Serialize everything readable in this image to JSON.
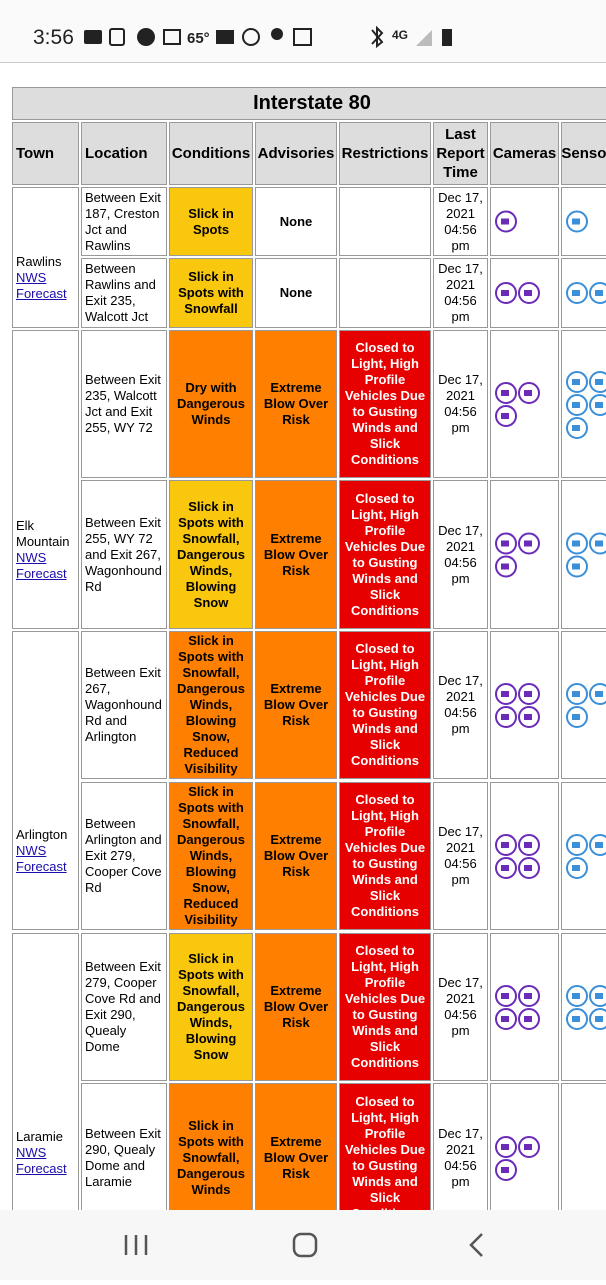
{
  "status_bar": {
    "time": "3:56",
    "temperature": "65°",
    "network": "4G"
  },
  "table": {
    "title": "Interstate 80",
    "headers": [
      "Town",
      "Location",
      "Conditions",
      "Advisories",
      "Restrictions",
      "Last Report Time",
      "Cameras",
      "Sensors"
    ],
    "towns": [
      {
        "name": "Rawlins",
        "link": "NWS Forecast",
        "rows": [
          {
            "location": "Between Exit 187, Creston Jct and Rawlins",
            "conditions": "Slick in Spots",
            "conditions_color": "#f9c80e",
            "advisories": "None",
            "advisories_color": "#ffffff",
            "restrictions": "",
            "restrictions_color": "#ffffff",
            "time": "Dec 17, 2021 04:56 pm"
          },
          {
            "location": "Between Rawlins and Exit 235, Walcott Jct",
            "conditions": "Slick in Spots with Snowfall",
            "conditions_color": "#f9c80e",
            "advisories": "None",
            "advisories_color": "#ffffff",
            "restrictions": "",
            "restrictions_color": "#ffffff",
            "time": "Dec 17, 2021 04:56 pm"
          }
        ]
      },
      {
        "name": "Elk Mountain",
        "link": "NWS Forecast",
        "rows": [
          {
            "location": "Between Exit 235, Walcott Jct and Exit 255, WY 72",
            "conditions": "Dry with Dangerous Winds",
            "conditions_color": "#ff8000",
            "advisories": "Extreme Blow Over Risk",
            "advisories_color": "#ff8000",
            "restrictions": "Closed to Light, High Profile Vehicles Due to Gusting Winds and Slick Conditions",
            "restrictions_color": "#e60000",
            "time": "Dec 17, 2021 04:56 pm"
          },
          {
            "location": "Between Exit 255, WY 72 and Exit 267, Wagonhound Rd",
            "conditions": "Slick in Spots with Snowfall, Dangerous Winds, Blowing Snow",
            "conditions_color": "#f9c80e",
            "advisories": "Extreme Blow Over Risk",
            "advisories_color": "#ff8000",
            "restrictions": "Closed to Light, High Profile Vehicles Due to Gusting Winds and Slick Conditions",
            "restrictions_color": "#e60000",
            "time": "Dec 17, 2021 04:56 pm"
          }
        ]
      },
      {
        "name": "Arlington",
        "link": "NWS Forecast",
        "rows": [
          {
            "location": "Between Exit 267, Wagonhound Rd and Arlington",
            "conditions": "Slick in Spots with Snowfall, Dangerous Winds, Blowing Snow, Reduced Visibility",
            "conditions_color": "#ff8000",
            "advisories": "Extreme Blow Over Risk",
            "advisories_color": "#ff8000",
            "restrictions": "Closed to Light, High Profile Vehicles Due to Gusting Winds and Slick Conditions",
            "restrictions_color": "#e60000",
            "time": "Dec 17, 2021 04:56 pm"
          },
          {
            "location": "Between Arlington and Exit 279, Cooper Cove Rd",
            "conditions": "Slick in Spots with Snowfall, Dangerous Winds, Blowing Snow, Reduced Visibility",
            "conditions_color": "#ff8000",
            "advisories": "Extreme Blow Over Risk",
            "advisories_color": "#ff8000",
            "restrictions": "Closed to Light, High Profile Vehicles Due to Gusting Winds and Slick Conditions",
            "restrictions_color": "#e60000",
            "time": "Dec 17, 2021 04:56 pm"
          }
        ]
      },
      {
        "name": "Laramie",
        "link": "NWS Forecast",
        "rows": [
          {
            "location": "Between Exit 279, Cooper Cove Rd and Exit 290, Quealy Dome",
            "conditions": "Slick in Spots with Snowfall, Dangerous Winds, Blowing Snow",
            "conditions_color": "#f9c80e",
            "advisories": "Extreme Blow Over Risk",
            "advisories_color": "#ff8000",
            "restrictions": "Closed to Light, High Profile Vehicles Due to Gusting Winds and Slick Conditions",
            "restrictions_color": "#e60000",
            "time": "Dec 17, 2021 04:56 pm"
          },
          {
            "location": "Between Exit 290, Quealy Dome and Laramie",
            "conditions": "Slick in Spots with Snowfall, Dangerous Winds",
            "conditions_color": "#ff8000",
            "advisories": "Extreme Blow Over Risk",
            "advisories_color": "#ff8000",
            "restrictions": "Closed to Light, High Profile Vehicles Due to Gusting Winds and Slick Conditions",
            "restrictions_color": "#e60000",
            "time": "Dec 17, 2021 04:56 pm"
          }
        ]
      }
    ]
  }
}
